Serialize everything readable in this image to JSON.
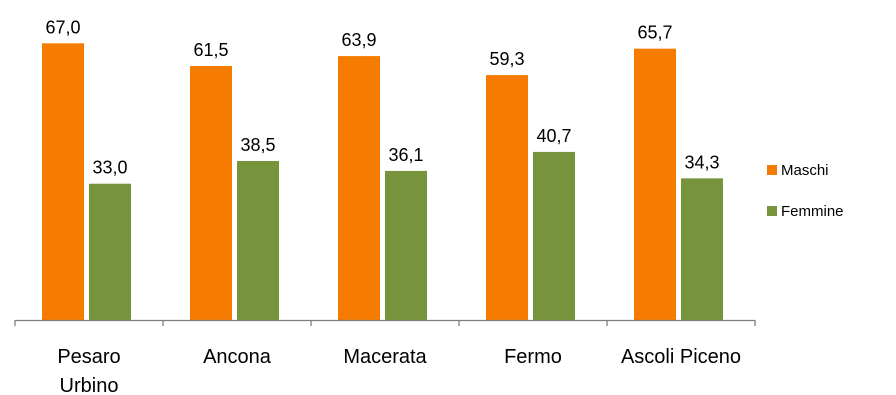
{
  "chart_data": {
    "type": "bar",
    "categories": [
      [
        "Pesaro",
        "Urbino"
      ],
      [
        "Ancona"
      ],
      [
        "Macerata"
      ],
      [
        "Fermo"
      ],
      [
        "Ascoli Piceno"
      ]
    ],
    "series": [
      {
        "name": "Maschi",
        "color": "#F57C00",
        "values": [
          67.0,
          61.5,
          63.9,
          59.3,
          65.7
        ],
        "labels": [
          "67,0",
          "61,5",
          "63,9",
          "59,3",
          "65,7"
        ]
      },
      {
        "name": "Femmine",
        "color": "#77933C",
        "values": [
          33.0,
          38.5,
          36.1,
          40.7,
          34.3
        ],
        "labels": [
          "33,0",
          "38,5",
          "36,1",
          "40,7",
          "34,3"
        ]
      }
    ],
    "title": "",
    "xlabel": "",
    "ylabel": "",
    "ylim": [
      0,
      80
    ],
    "grid": false,
    "legend": "right",
    "axis_color": "#7f7f7f"
  }
}
